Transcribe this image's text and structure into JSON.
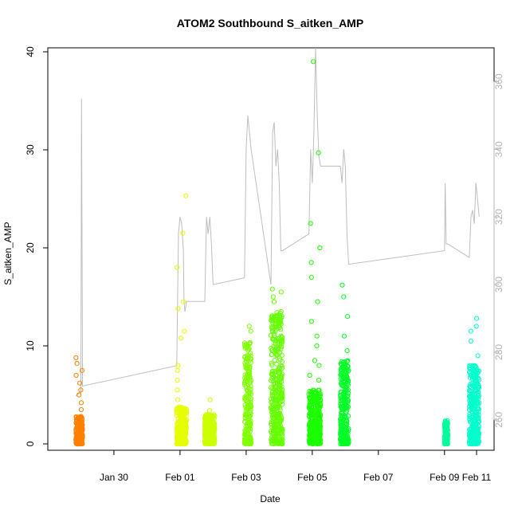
{
  "chart_data": {
    "type": "scatter",
    "title": "ATOM2 Southbound S_aitken_AMP",
    "xlabel": "Date",
    "ylabel": "S_aitken_AMP",
    "x_range_days": [
      28.0,
      41.5
    ],
    "ylim": [
      0,
      40
    ],
    "y2lim": [
      251,
      370
    ],
    "x_ticks": [
      {
        "label": "Jan 30",
        "day": 30
      },
      {
        "label": "Feb 01",
        "day": 32
      },
      {
        "label": "Feb 03",
        "day": 34
      },
      {
        "label": "Feb 05",
        "day": 36
      },
      {
        "label": "Feb 07",
        "day": 38
      },
      {
        "label": "Feb 09",
        "day": 40
      },
      {
        "label": "Feb 11",
        "day": 42
      }
    ],
    "y_ticks": [
      0,
      10,
      20,
      30,
      40
    ],
    "y2_ticks": [
      260,
      280,
      300,
      320,
      340,
      360
    ],
    "grid": false,
    "legend": "none",
    "colors": {
      "secondary_line": "#bebebe",
      "secondary_axis": "#b4b4b4"
    },
    "flights": [
      {
        "x_start": 28.85,
        "x_end": 29.05,
        "color": "#ff8000",
        "base_max": 2.8,
        "spikes": [
          3.5,
          4.2,
          5.0,
          5.5,
          6.2,
          7.0,
          7.5,
          8.2,
          8.8
        ]
      },
      {
        "x_start": 31.9,
        "x_end": 32.2,
        "color": "#e6ff00",
        "base_max": 3.8,
        "spikes": [
          4.5,
          5.5,
          6.5,
          7.5,
          8.0,
          10.8,
          11.5,
          13.8,
          14.5,
          18.0,
          21.5,
          25.3
        ]
      },
      {
        "x_start": 32.75,
        "x_end": 33.05,
        "color": "#ccff00",
        "base_max": 3.0,
        "spikes": [
          3.4,
          4.5
        ]
      },
      {
        "x_start": 33.95,
        "x_end": 34.15,
        "color": "#80ff00",
        "base_max": 10.5,
        "spikes": [
          11.5,
          12.0
        ]
      },
      {
        "x_start": 34.75,
        "x_end": 35.1,
        "color": "#66ff00",
        "base_max": 13.5,
        "spikes": [
          14.5,
          15.0,
          15.5,
          15.8
        ]
      },
      {
        "x_start": 35.9,
        "x_end": 36.25,
        "color": "#1aff00",
        "base_max": 5.5,
        "spikes": [
          6.5,
          7.0,
          8.0,
          8.5,
          10.0,
          11.0,
          12.5,
          14.5,
          17.0,
          18.5,
          20.0,
          22.5,
          29.7,
          39.0
        ]
      },
      {
        "x_start": 36.85,
        "x_end": 37.1,
        "color": "#00ff26",
        "base_max": 8.5,
        "spikes": [
          9.5,
          11.0,
          13.0,
          15.0,
          16.2
        ]
      },
      {
        "x_start": 40.0,
        "x_end": 40.1,
        "color": "#00ff99",
        "base_max": 2.4,
        "spikes": []
      },
      {
        "x_start": 40.75,
        "x_end": 41.05,
        "color": "#00ffcc",
        "base_max": 8.0,
        "spikes": [
          9.0,
          10.5,
          11.5,
          12.0,
          12.8
        ]
      }
    ],
    "secondary_series": [
      [
        28.85,
        267
      ],
      [
        28.95,
        268
      ],
      [
        29.0,
        268
      ],
      [
        29.02,
        355
      ],
      [
        29.05,
        270
      ],
      [
        31.9,
        276
      ],
      [
        31.95,
        315
      ],
      [
        32.0,
        320
      ],
      [
        32.05,
        318
      ],
      [
        32.1,
        310
      ],
      [
        32.12,
        295
      ],
      [
        32.15,
        292
      ],
      [
        32.2,
        295
      ],
      [
        32.75,
        295
      ],
      [
        32.8,
        320
      ],
      [
        32.85,
        315
      ],
      [
        32.9,
        320
      ],
      [
        32.95,
        312
      ],
      [
        33.0,
        300
      ],
      [
        33.95,
        302
      ],
      [
        34.0,
        340
      ],
      [
        34.05,
        350
      ],
      [
        34.1,
        345
      ],
      [
        34.15,
        340
      ],
      [
        34.75,
        300
      ],
      [
        34.8,
        345
      ],
      [
        34.85,
        348
      ],
      [
        34.9,
        335
      ],
      [
        34.95,
        340
      ],
      [
        35.0,
        330
      ],
      [
        35.05,
        310
      ],
      [
        35.1,
        310
      ],
      [
        35.9,
        315
      ],
      [
        35.95,
        340
      ],
      [
        36.0,
        330
      ],
      [
        36.05,
        345
      ],
      [
        36.1,
        370
      ],
      [
        36.15,
        350
      ],
      [
        36.2,
        338
      ],
      [
        36.25,
        335
      ],
      [
        36.85,
        335
      ],
      [
        36.9,
        330
      ],
      [
        36.95,
        340
      ],
      [
        37.0,
        335
      ],
      [
        37.05,
        315
      ],
      [
        37.1,
        306
      ],
      [
        40.0,
        310
      ],
      [
        40.02,
        330
      ],
      [
        40.05,
        312
      ],
      [
        40.1,
        312
      ],
      [
        40.75,
        308
      ],
      [
        40.8,
        320
      ],
      [
        40.85,
        322
      ],
      [
        40.9,
        318
      ],
      [
        40.95,
        330
      ],
      [
        41.0,
        325
      ],
      [
        41.05,
        320
      ]
    ]
  }
}
